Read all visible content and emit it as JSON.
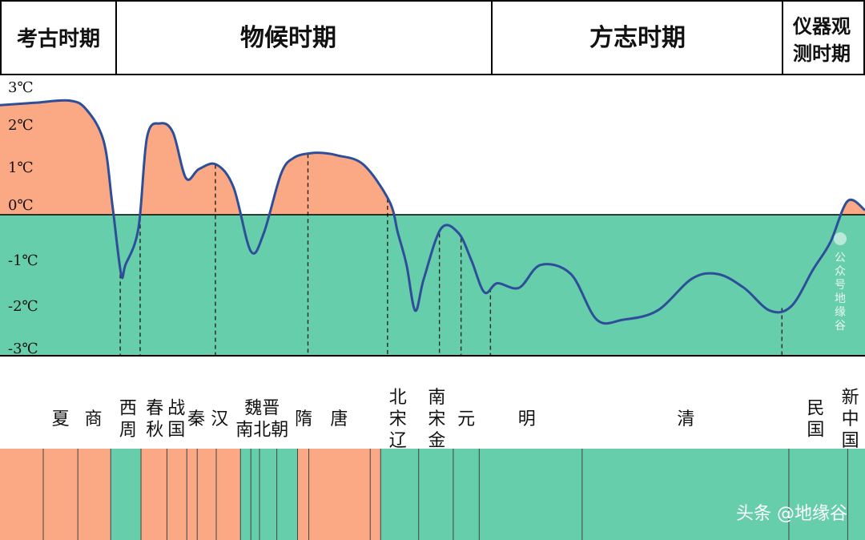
{
  "colors": {
    "warm": "#fba884",
    "cold": "#66ceab",
    "line": "#2e4e9a",
    "border": "#000000",
    "strip_divider": "#444444"
  },
  "periods": [
    {
      "label": "考古时期"
    },
    {
      "label": "物候时期"
    },
    {
      "label": "方志时期"
    },
    {
      "label": "仪器观测时期",
      "lines": [
        "仪器观",
        "测时期"
      ]
    }
  ],
  "chart_data": {
    "type": "area",
    "title": "",
    "xlabel": "",
    "ylabel": "",
    "ylim": [
      -3,
      3
    ],
    "yticks": [
      "3℃",
      "2℃",
      "1℃",
      "0℃",
      "-1℃",
      "-2℃",
      "-3℃"
    ],
    "baseline": 0,
    "series": [
      {
        "x": [
          0.0,
          0.04,
          0.08,
          0.1,
          0.12,
          0.13,
          0.14,
          0.145,
          0.16,
          0.17,
          0.185,
          0.2,
          0.215,
          0.23,
          0.25,
          0.27,
          0.29,
          0.305,
          0.325,
          0.34,
          0.36,
          0.375,
          0.39,
          0.42,
          0.45,
          0.46,
          0.47,
          0.48,
          0.49,
          0.51,
          0.53,
          0.545,
          0.56,
          0.575,
          0.6,
          0.625,
          0.66,
          0.69,
          0.72,
          0.76,
          0.8,
          0.83,
          0.86,
          0.89,
          0.915,
          0.94,
          0.96,
          0.98,
          1.0
        ],
        "values": [
          2.4,
          2.45,
          2.5,
          2.3,
          1.6,
          0.2,
          -1.3,
          -1.1,
          -0.3,
          1.7,
          2.0,
          1.8,
          0.8,
          1.0,
          1.1,
          0.6,
          -0.8,
          -0.4,
          0.9,
          1.25,
          1.35,
          1.35,
          1.3,
          1.1,
          0.3,
          -0.4,
          -1.1,
          -2.1,
          -1.4,
          -0.3,
          -0.4,
          -1.0,
          -1.7,
          -1.5,
          -1.6,
          -1.1,
          -1.3,
          -2.3,
          -2.3,
          -2.1,
          -1.4,
          -1.3,
          -1.6,
          -2.1,
          -2.0,
          -1.2,
          -0.6,
          0.3,
          0.1
        ]
      }
    ],
    "dynasties": [
      {
        "name": "夏",
        "lines": [
          "夏"
        ],
        "x": 0.07
      },
      {
        "name": "商",
        "lines": [
          "商"
        ],
        "x": 0.108
      },
      {
        "name": "西周",
        "lines": [
          "西",
          "周"
        ],
        "x": 0.148
      },
      {
        "name": "春秋",
        "lines": [
          "春",
          "秋"
        ],
        "x": 0.179
      },
      {
        "name": "战国",
        "lines": [
          "战",
          "国"
        ],
        "x": 0.204
      },
      {
        "name": "秦",
        "lines": [
          "秦"
        ],
        "x": 0.227
      },
      {
        "name": "汉",
        "lines": [
          "汉"
        ],
        "x": 0.254
      },
      {
        "name": "魏晋南北朝",
        "lines": [
          "魏晋",
          "南北朝"
        ],
        "x": 0.303
      },
      {
        "name": "隋",
        "lines": [
          "隋"
        ],
        "x": 0.351
      },
      {
        "name": "唐",
        "lines": [
          "唐"
        ],
        "x": 0.392
      },
      {
        "name": "北宋辽",
        "lines": [
          "北",
          "宋",
          "辽"
        ],
        "x": 0.46
      },
      {
        "name": "南宋金",
        "lines": [
          "南",
          "宋",
          "金"
        ],
        "x": 0.505
      },
      {
        "name": "元",
        "lines": [
          "元"
        ],
        "x": 0.539
      },
      {
        "name": "明",
        "lines": [
          "明"
        ],
        "x": 0.609
      },
      {
        "name": "清",
        "lines": [
          "清"
        ],
        "x": 0.793
      },
      {
        "name": "民国",
        "lines": [
          "民",
          "国"
        ],
        "x": 0.943
      },
      {
        "name": "新中国",
        "lines": [
          "新",
          "中",
          "国"
        ],
        "x": 0.983
      }
    ],
    "strip_segments": [
      {
        "start": 0.0,
        "end": 0.128,
        "class": "warm"
      },
      {
        "start": 0.128,
        "end": 0.163,
        "class": "cold"
      },
      {
        "start": 0.163,
        "end": 0.278,
        "class": "warm"
      },
      {
        "start": 0.278,
        "end": 0.344,
        "class": "cold"
      },
      {
        "start": 0.344,
        "end": 0.44,
        "class": "warm"
      },
      {
        "start": 0.44,
        "end": 1.0,
        "class": "cold"
      }
    ],
    "strip_dividers": [
      0.05,
      0.09,
      0.128,
      0.163,
      0.193,
      0.216,
      0.228,
      0.25,
      0.278,
      0.29,
      0.3,
      0.32,
      0.344,
      0.357,
      0.428,
      0.44,
      0.484,
      0.524,
      0.554,
      0.673,
      0.912,
      0.98
    ],
    "transition_marks": [
      0.139,
      0.162,
      0.249,
      0.356,
      0.448,
      0.508,
      0.533,
      0.567,
      0.904
    ]
  },
  "watermark": {
    "text": "公众号地缘谷",
    "chars": [
      "公",
      "众",
      "号",
      "地",
      "缘",
      "谷"
    ]
  },
  "credit": "头条 @地缘谷"
}
